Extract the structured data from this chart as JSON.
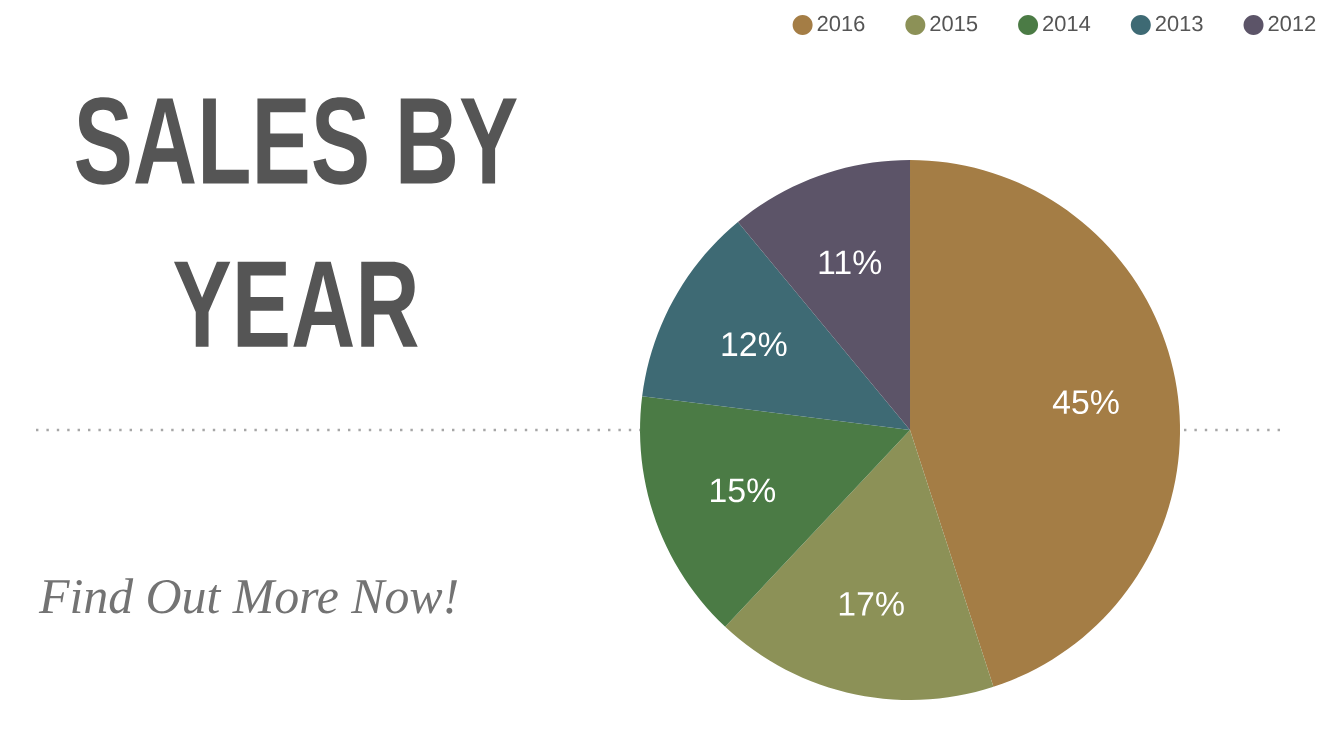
{
  "chart_data": {
    "type": "pie",
    "title": "SALES BY YEAR",
    "categories": [
      "2016",
      "2015",
      "2014",
      "2013",
      "2012"
    ],
    "values": [
      45,
      17,
      15,
      12,
      11
    ],
    "colors": [
      "#a47d45",
      "#8c9157",
      "#4b7b45",
      "#3e6a74",
      "#5c5468"
    ],
    "value_labels": [
      "45%",
      "17%",
      "15%",
      "12%",
      "11%"
    ],
    "legend": "top right",
    "annotations": [
      "Find Out More Now!"
    ]
  }
}
